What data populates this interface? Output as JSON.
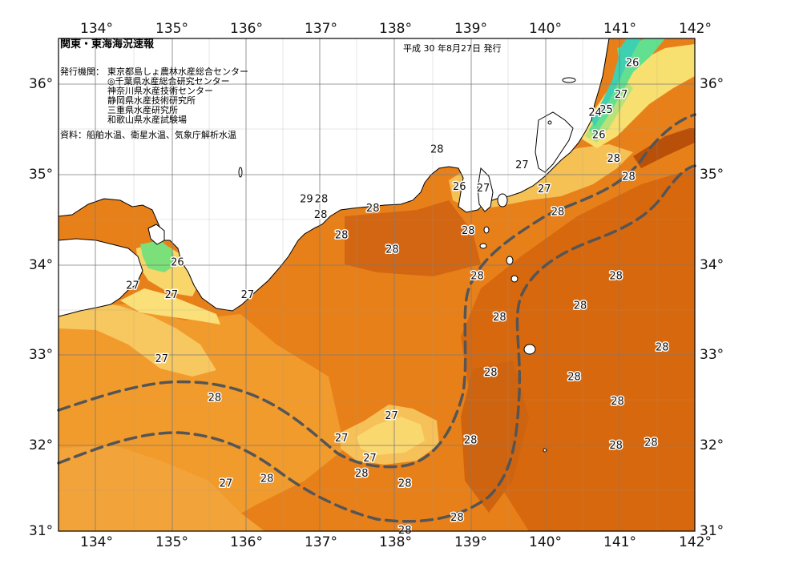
{
  "title": "関東・東海海況速報",
  "date": "平成 30 年8月27日 発行",
  "issuers_label": "発行機関：",
  "issuers": [
    "東京都島しょ農林水産総合センター",
    "◎千葉県水産総合研究センター",
    "神奈川県水産技術センター",
    "静岡県水産技術研究所",
    "三重県水産研究所",
    "和歌山県水産試験場"
  ],
  "source": "資料：船舶水温、衛星水温、気象庁解析水温",
  "axes": {
    "lon_ticks": [
      "134°",
      "135°",
      "136°",
      "137°",
      "138°",
      "139°",
      "140°",
      "141°",
      "142°"
    ],
    "lat_ticks": [
      "36°",
      "35°",
      "34°",
      "33°",
      "32°",
      "31°"
    ]
  },
  "colors": {
    "sea_28": "#e47a12",
    "sea_28_hot": "#c85a0c",
    "sea_27": "#f09a2a",
    "sea_26": "#f6c050",
    "sea_25": "#f8e070",
    "sea_24": "#b8e070",
    "sea_23": "#60e090",
    "land": "#ffffff",
    "current": "#555555"
  },
  "isotherm_labels": [
    {
      "text": "26",
      "lon": 141.2,
      "lat": 36.23
    },
    {
      "text": "27",
      "lon": 141.05,
      "lat": 35.88
    },
    {
      "text": "25",
      "lon": 140.85,
      "lat": 35.71
    },
    {
      "text": "24",
      "lon": 140.7,
      "lat": 35.68
    },
    {
      "text": "26",
      "lon": 140.75,
      "lat": 35.43
    },
    {
      "text": "28",
      "lon": 138.58,
      "lat": 35.27
    },
    {
      "text": "28",
      "lon": 140.95,
      "lat": 35.17
    },
    {
      "text": "27",
      "lon": 139.72,
      "lat": 35.1
    },
    {
      "text": "28",
      "lon": 141.15,
      "lat": 34.97
    },
    {
      "text": "26",
      "lon": 138.88,
      "lat": 34.86
    },
    {
      "text": "27",
      "lon": 139.2,
      "lat": 34.84
    },
    {
      "text": "27",
      "lon": 140.02,
      "lat": 34.83
    },
    {
      "text": "29",
      "lon": 136.83,
      "lat": 34.72
    },
    {
      "text": "28",
      "lon": 137.03,
      "lat": 34.72
    },
    {
      "text": "28",
      "lon": 137.72,
      "lat": 34.62
    },
    {
      "text": "28",
      "lon": 137.02,
      "lat": 34.55
    },
    {
      "text": "28",
      "lon": 140.2,
      "lat": 34.58
    },
    {
      "text": "28",
      "lon": 139.0,
      "lat": 34.37
    },
    {
      "text": "28",
      "lon": 137.3,
      "lat": 34.32
    },
    {
      "text": "28",
      "lon": 137.98,
      "lat": 34.16
    },
    {
      "text": "26",
      "lon": 135.1,
      "lat": 34.02
    },
    {
      "text": "28",
      "lon": 139.12,
      "lat": 33.87
    },
    {
      "text": "28",
      "lon": 140.98,
      "lat": 33.87
    },
    {
      "text": "27",
      "lon": 134.5,
      "lat": 33.76
    },
    {
      "text": "27",
      "lon": 135.02,
      "lat": 33.66
    },
    {
      "text": "27",
      "lon": 136.04,
      "lat": 33.66
    },
    {
      "text": "28",
      "lon": 140.5,
      "lat": 33.54
    },
    {
      "text": "28",
      "lon": 139.42,
      "lat": 33.41
    },
    {
      "text": "28",
      "lon": 141.6,
      "lat": 33.08
    },
    {
      "text": "27",
      "lon": 134.89,
      "lat": 32.95
    },
    {
      "text": "28",
      "lon": 139.3,
      "lat": 32.8
    },
    {
      "text": "28",
      "lon": 140.42,
      "lat": 32.75
    },
    {
      "text": "28",
      "lon": 135.6,
      "lat": 32.52
    },
    {
      "text": "28",
      "lon": 141.0,
      "lat": 32.48
    },
    {
      "text": "27",
      "lon": 137.97,
      "lat": 32.32
    },
    {
      "text": "27",
      "lon": 137.3,
      "lat": 32.07
    },
    {
      "text": "28",
      "lon": 139.03,
      "lat": 32.05
    },
    {
      "text": "28",
      "lon": 140.98,
      "lat": 31.99
    },
    {
      "text": "28",
      "lon": 141.45,
      "lat": 32.02
    },
    {
      "text": "27",
      "lon": 137.68,
      "lat": 31.85
    },
    {
      "text": "28",
      "lon": 137.57,
      "lat": 31.68
    },
    {
      "text": "28",
      "lon": 136.3,
      "lat": 31.62
    },
    {
      "text": "27",
      "lon": 135.75,
      "lat": 31.57
    },
    {
      "text": "28",
      "lon": 138.15,
      "lat": 31.57
    },
    {
      "text": "28",
      "lon": 138.85,
      "lat": 31.19
    },
    {
      "text": "28",
      "lon": 138.15,
      "lat": 31.05
    }
  ]
}
